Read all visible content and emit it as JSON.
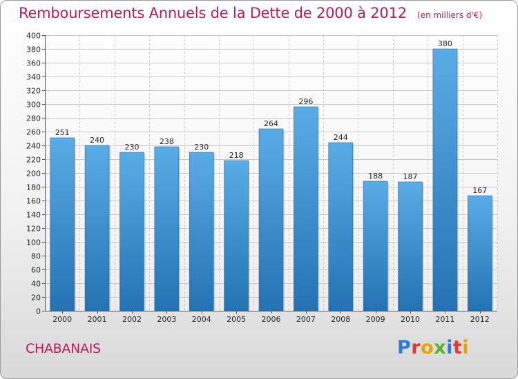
{
  "title": "Remboursements Annuels de la Dette de 2000 à 2012",
  "subtitle": "(en milliers d'€)",
  "commune": "CHABANAIS",
  "logo": {
    "text": "Proxiti",
    "colors": [
      "#2e7bd6",
      "#e8372c",
      "#e5a500",
      "#5bb12f",
      "#2e7bd6",
      "#e8372c",
      "#e5a500"
    ]
  },
  "colors": {
    "bar_top": "#5aace6",
    "bar_bottom": "#2472b3",
    "title": "#c2185b",
    "grid": "#c8c8c8"
  },
  "chart_data": {
    "type": "bar",
    "title": "Remboursements Annuels de la Dette de 2000 à 2012",
    "subtitle": "(en milliers d'€)",
    "categories": [
      "2000",
      "2001",
      "2002",
      "2003",
      "2004",
      "2005",
      "2006",
      "2007",
      "2008",
      "2009",
      "2010",
      "2011",
      "2012"
    ],
    "values": [
      251,
      240,
      230,
      238,
      230,
      218,
      264,
      296,
      244,
      188,
      187,
      380,
      167
    ],
    "y_ticks": [
      0,
      20,
      40,
      60,
      80,
      100,
      120,
      140,
      160,
      180,
      200,
      220,
      240,
      260,
      280,
      300,
      320,
      340,
      360,
      380,
      400
    ],
    "ylim": [
      0,
      400
    ],
    "grid": true,
    "xlabel": "",
    "ylabel": ""
  }
}
